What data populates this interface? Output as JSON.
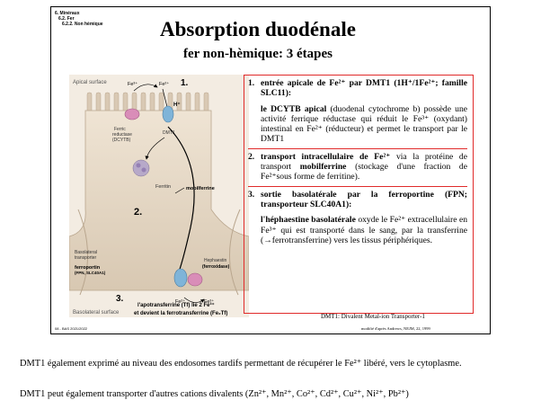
{
  "breadcrumb": [
    "6. Minéraux",
    "6.2. Fer",
    "6.2.2. Non hèmique"
  ],
  "title": "Absorption duodénale",
  "subtitle": "fer non-hèmique: 3 étapes",
  "figure": {
    "apical_surface": "Apical surface",
    "fe3": "Fe³⁺",
    "fe2": "Fe²⁺",
    "h_plus": "H⁺",
    "step1": "1.",
    "step2": "2.",
    "step3": "3.",
    "ferric_reductase": "Ferric reductase (DCYTB)",
    "dmt1": "DMT1",
    "ferritin": "Ferritin",
    "mobilferrine": "mobilferrine",
    "basolateral_transporter": "Basolateral transporter",
    "ferroportin": "ferroportin (FPN, SLC40A1)",
    "hephaestin": "Hephaestin (ferroxidase)",
    "basolateral_surface": "Basolateral surface",
    "apotransferrin_note": "l'apotransferrine (Tf) lie 2 Fe³⁺ et devient la ferrotransferrine (Fe₂Tf)"
  },
  "steps": {
    "s1_head": "entrée apicale de Fe²⁺ par DMT1 (1H⁺/1Fe²⁺; famille SLC11):",
    "s1_bold": "le DCYTB apical",
    "s1_body": " (duodenal cytochrome b) possède une activité ferrique réductase qui réduit le Fe³⁺ (oxydant) intestinal en Fe²⁺ (réducteur) et permet le transport par le DMT1",
    "s2_head": "transport intracellulaire de Fe²⁺",
    "s2_body1": " via la protéine de transport ",
    "s2_bold": "mobilferrine",
    "s2_body2": " (stockage d'une fraction de Fe²⁺sous forme de ferritine).",
    "s3_head": "sortie basolatérale par la ferroportine (FPN; transporteur SLC40A1):",
    "s3_bold": "l'héphaestine basolatérale",
    "s3_body": " oxyde le Fe²⁺ extracellulaire en Fe³⁺ qui est transporté dans le sang, par la transferrine (→ferrotransferrine) vers les tissus périphériques."
  },
  "caption": "DMT1: Divalent Metal-ion Transporter-1",
  "credit": "modifié d'après Andrews, NEJM, 22, 1999",
  "footer": "08 - BAS 2021/2022",
  "paragraphs": [
    "DMT1 également exprimé au niveau des endosomes tardifs permettant de récupérer le Fe²⁺ libéré, vers le cytoplasme.",
    "DMT1 peut également transporter d'autres cations divalents (Zn²⁺, Mn²⁺, Co²⁺, Cd²⁺, Cu²⁺, Ni²⁺, Pb²⁺)"
  ],
  "colors": {
    "box_border": "#e02a2a",
    "cell": "#e8dccb",
    "pink": "#d98db8",
    "blue": "#7fb4d8"
  }
}
